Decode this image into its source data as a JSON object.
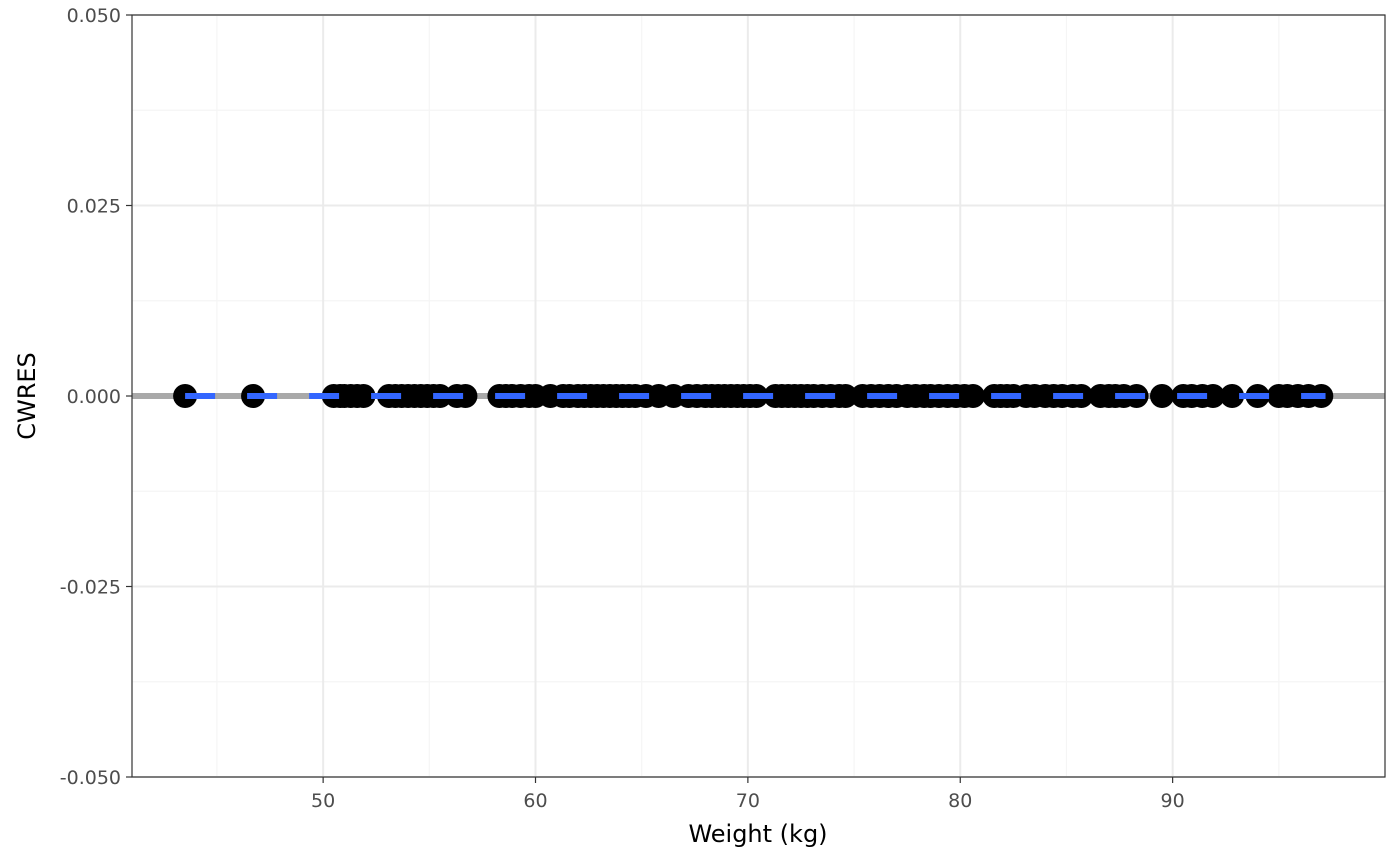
{
  "chart_data": {
    "type": "scatter",
    "title": "",
    "xlabel": "Weight (kg)",
    "ylabel": "CWRES",
    "xlim": [
      41,
      100
    ],
    "ylim": [
      -0.05,
      0.05
    ],
    "x_ticks": [
      50,
      60,
      70,
      80,
      90
    ],
    "x_tick_labels": [
      "50",
      "60",
      "70",
      "80",
      "90"
    ],
    "y_ticks": [
      -0.05,
      -0.025,
      0,
      0.025,
      0.05
    ],
    "y_tick_labels": [
      "-0.050",
      "-0.025",
      "0.000",
      "0.025",
      "0.050"
    ],
    "grid": true,
    "legend": "none",
    "colors": {
      "points": "#000000",
      "reference_line": "#a9a9a9",
      "smooth_line": "#3366ff",
      "grid_major": "#ebebeb",
      "grid_minor": "#f5f5f5",
      "panel_border": "#333333"
    },
    "reference_line": {
      "y": 0
    },
    "smooth_line": {
      "x": [
        43.5,
        97.2
      ],
      "y": [
        0,
        0
      ]
    },
    "points": {
      "x": [
        43.5,
        46.7,
        50.5,
        50.8,
        51.0,
        51.3,
        51.6,
        51.9,
        53.1,
        53.4,
        53.7,
        54.0,
        54.3,
        54.6,
        54.9,
        55.2,
        55.5,
        56.3,
        56.7,
        58.3,
        58.6,
        58.9,
        59.3,
        59.7,
        60.0,
        60.7,
        61.3,
        61.6,
        62.0,
        62.3,
        62.6,
        62.9,
        63.2,
        63.5,
        63.8,
        64.1,
        64.4,
        64.7,
        65.2,
        65.8,
        66.5,
        67.2,
        67.6,
        68.0,
        68.3,
        68.6,
        68.9,
        69.2,
        69.5,
        69.8,
        70.1,
        70.4,
        71.3,
        71.6,
        71.9,
        72.2,
        72.5,
        72.8,
        73.1,
        73.5,
        73.9,
        74.3,
        74.6,
        75.4,
        75.8,
        76.2,
        76.6,
        77.0,
        77.5,
        77.9,
        78.3,
        78.6,
        79.0,
        79.4,
        79.8,
        80.2,
        80.6,
        81.6,
        81.9,
        82.2,
        82.5,
        83.1,
        83.5,
        84.0,
        84.4,
        84.8,
        85.3,
        85.7,
        86.6,
        87.0,
        87.3,
        87.7,
        88.3,
        89.5,
        90.5,
        90.9,
        91.4,
        91.9,
        92.8,
        94.0,
        95.0,
        95.4,
        95.9,
        96.4,
        97.0
      ]
    }
  }
}
